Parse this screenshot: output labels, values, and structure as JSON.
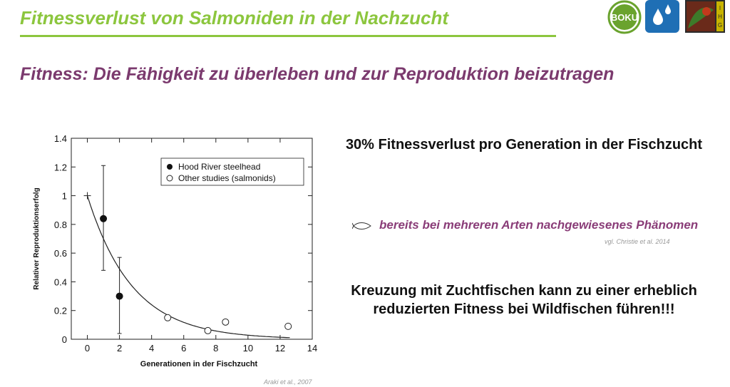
{
  "slide": {
    "title": "Fitnessverlust von Salmoniden in der Nachzucht",
    "subtitle": "Fitness: Die Fähigkeit zu überleben und zur Reproduktion beizutragen",
    "headline1": "30% Fitnessverlust pro Generation in der Fischzucht",
    "bullet_icon": "fish-outline-icon",
    "bullet": "bereits bei mehreren Arten  nachgewiesenes  Phänomen",
    "citation1": "vgl. Christie et al. 2014",
    "headline2": "Kreuzung mit Zuchtfischen kann zu einer erheblich reduzierten Fitness bei Wildfischen führen!!!",
    "citation2": "Araki et al., 2007"
  },
  "logos": [
    {
      "name": "boku-logo",
      "text": "BOKU",
      "color": "#6aa32e"
    },
    {
      "name": "water-drops-logo",
      "color": "#1f6fb5"
    },
    {
      "name": "ihg-logo",
      "text": "IHG",
      "color": "#c8b400"
    }
  ],
  "colors": {
    "accent_green": "#8cc63e",
    "accent_purple": "#7b3a6e"
  },
  "chart_data": {
    "type": "scatter",
    "xlabel": "Generationen in der Fischzucht",
    "ylabel": "Relativer Reproduktionserfolg",
    "xlim": [
      -1,
      14
    ],
    "ylim": [
      0,
      1.4
    ],
    "xticks": [
      0,
      2,
      4,
      6,
      8,
      10,
      12,
      14
    ],
    "yticks": [
      0,
      0.2,
      0.4,
      0.6,
      0.8,
      1,
      1.2,
      1.4
    ],
    "ytick_labels": [
      "0",
      "0.2",
      "0.4",
      "0.6",
      "0.8",
      "1",
      "1.2",
      "1.4"
    ],
    "legend_position": "top-right",
    "series": [
      {
        "name": "Hood River steelhead",
        "marker": "filled-circle",
        "points": [
          {
            "x": 1,
            "y": 0.84,
            "err_low": 0.48,
            "err_high": 1.21
          },
          {
            "x": 2,
            "y": 0.3,
            "err_low": 0.04,
            "err_high": 0.57
          }
        ]
      },
      {
        "name": "Other studies (salmonids)",
        "marker": "open-circle",
        "points": [
          {
            "x": 5,
            "y": 0.15
          },
          {
            "x": 7.5,
            "y": 0.06
          },
          {
            "x": 8.6,
            "y": 0.12
          },
          {
            "x": 12.5,
            "y": 0.09
          }
        ]
      }
    ],
    "reference_point": {
      "x": 0,
      "y": 1,
      "marker": "plus"
    },
    "fit_curve": {
      "type": "exponential",
      "y0": 1,
      "retention_per_generation": 0.7
    }
  }
}
